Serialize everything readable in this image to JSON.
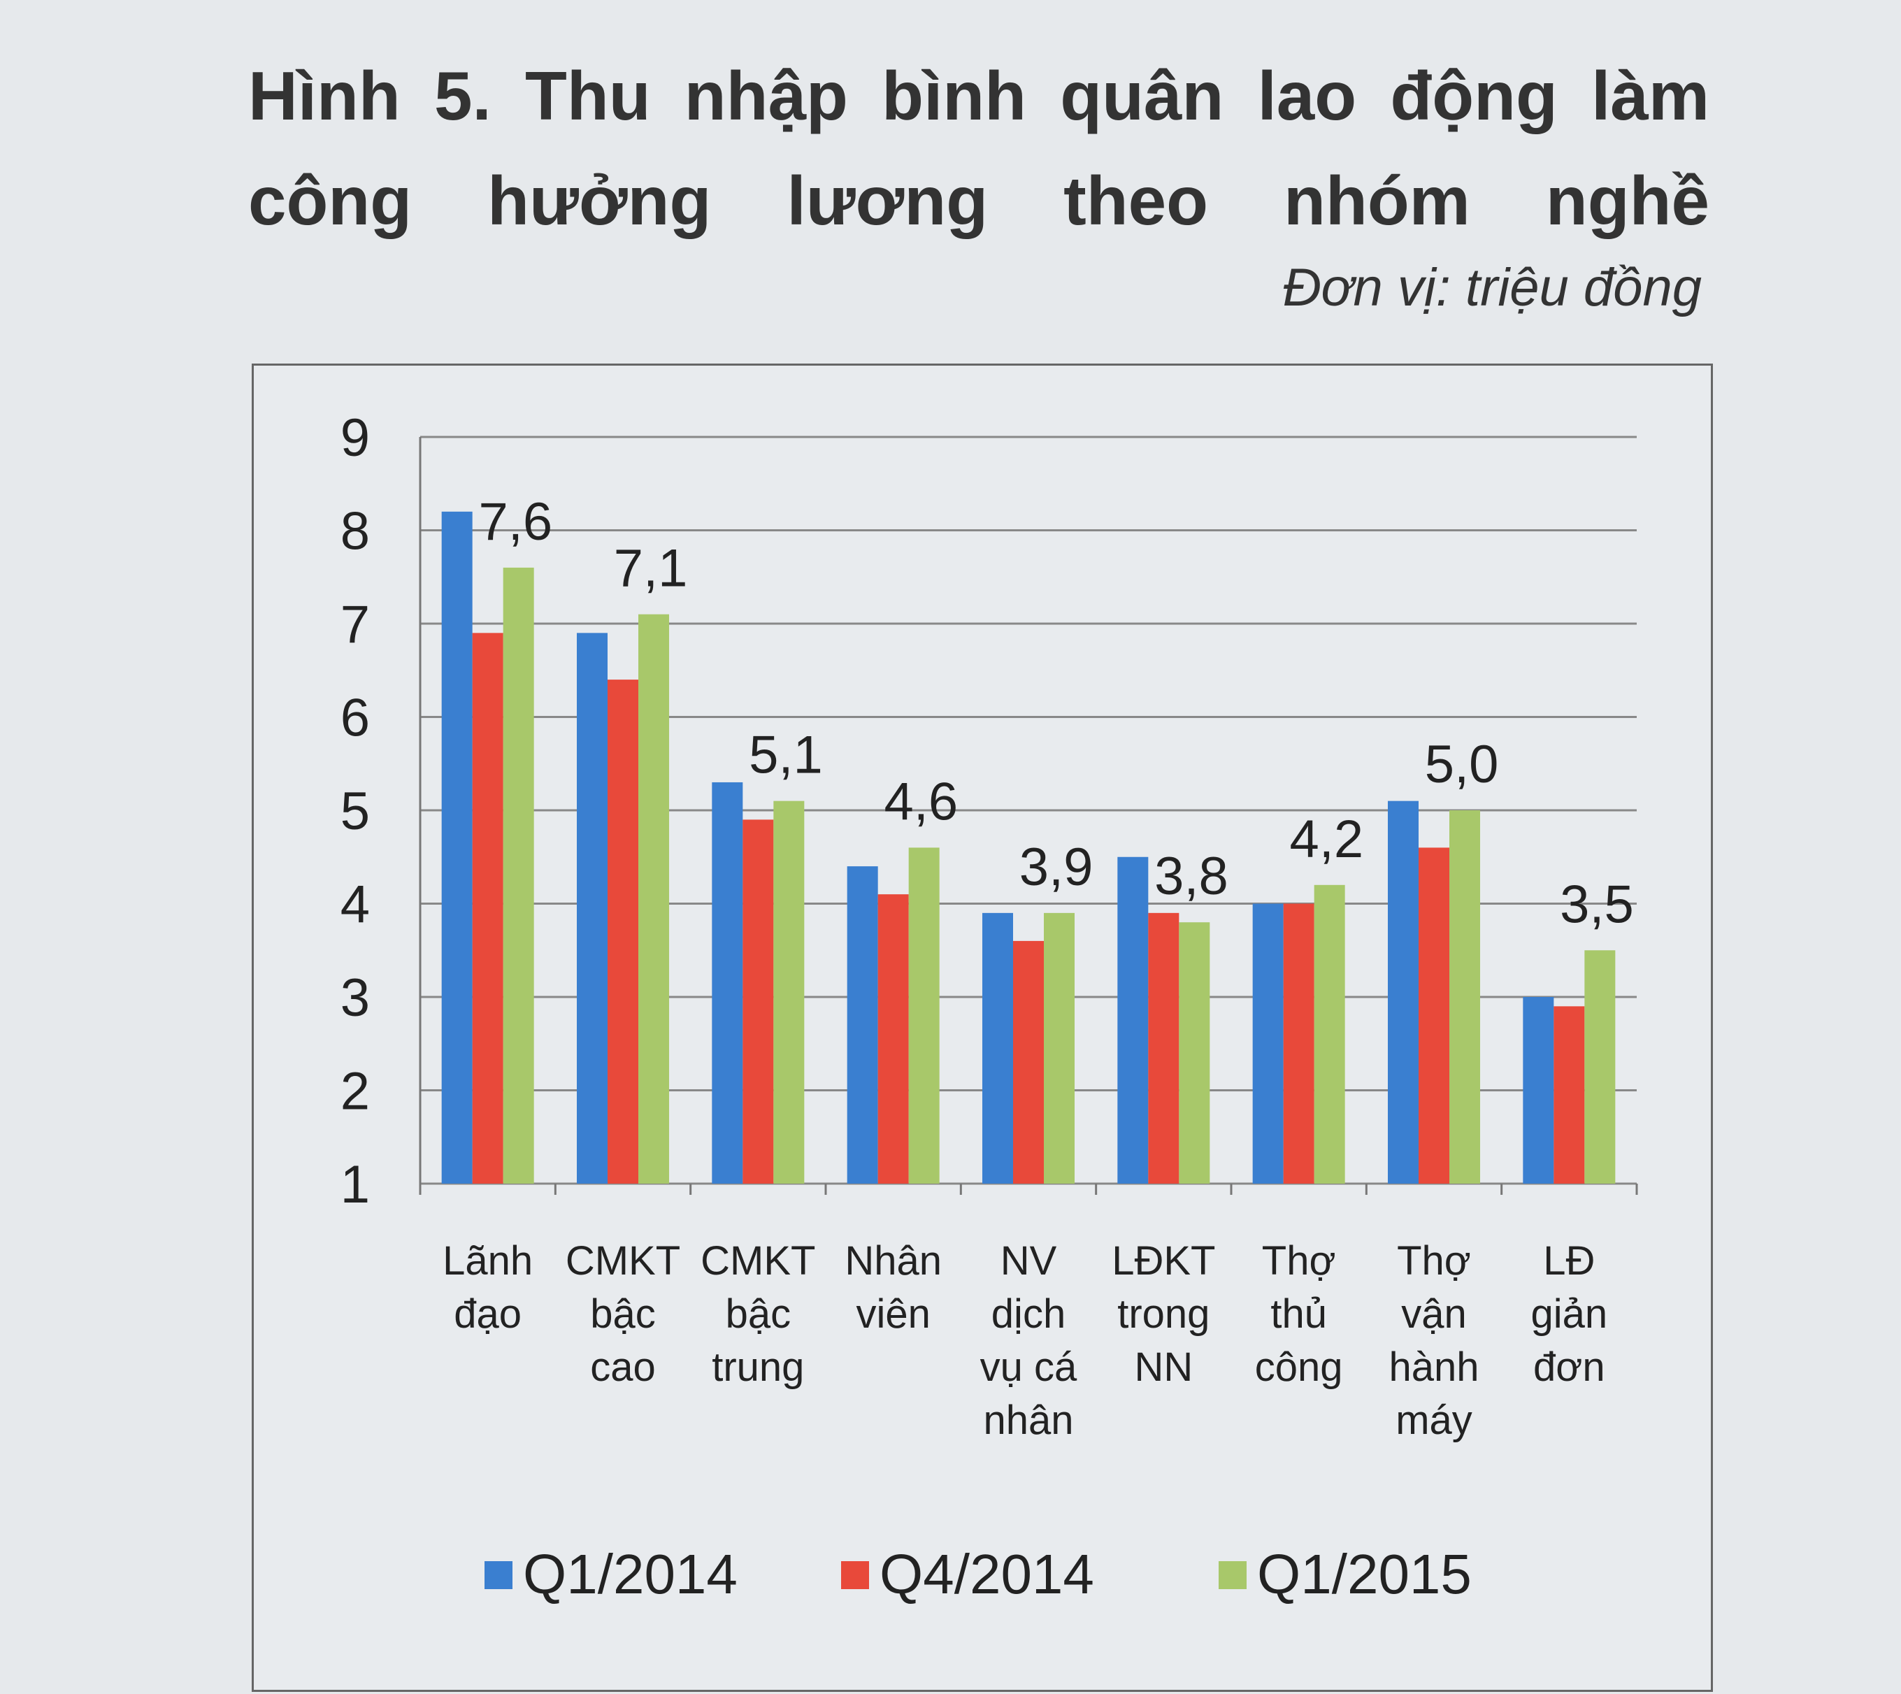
{
  "figure": {
    "title": "Hình 5. Thu nhập bình quân lao động làm công hưởng lương theo nhóm nghề",
    "unit": "Đơn vị: triệu đồng"
  },
  "colors": {
    "Q1/2014": "#3a7fd0",
    "Q4/2014": "#e8493a",
    "Q1/2015": "#a8c86a"
  },
  "chart_data": {
    "type": "bar",
    "title": "Hình 5. Thu nhập bình quân lao động làm công hưởng lương theo nhóm nghề",
    "unit": "Đơn vị: triệu đồng",
    "xlabel": "",
    "ylabel": "",
    "ylim": [
      1,
      9
    ],
    "yticks": [
      1,
      2,
      3,
      4,
      5,
      6,
      7,
      8,
      9
    ],
    "grid": true,
    "legend": "bottom",
    "categories": [
      [
        "Lãnh",
        "đạo"
      ],
      [
        "CMKT",
        "bậc",
        "cao"
      ],
      [
        "CMKT",
        "bậc",
        "trung"
      ],
      [
        "Nhân",
        "viên"
      ],
      [
        "NV",
        "dịch",
        "vụ cá",
        "nhân"
      ],
      [
        "LĐKT",
        "trong",
        "NN"
      ],
      [
        "Thợ",
        "thủ",
        "công"
      ],
      [
        "Thợ",
        "vận",
        "hành",
        "máy"
      ],
      [
        "LĐ",
        "giản",
        "đơn"
      ]
    ],
    "series": [
      {
        "name": "Q1/2014",
        "values": [
          8.2,
          6.9,
          5.3,
          4.4,
          3.9,
          4.5,
          4.0,
          5.1,
          3.0
        ]
      },
      {
        "name": "Q4/2014",
        "values": [
          6.9,
          6.4,
          4.9,
          4.1,
          3.6,
          3.9,
          4.0,
          4.6,
          2.9
        ]
      },
      {
        "name": "Q1/2015",
        "values": [
          7.6,
          7.1,
          5.1,
          4.6,
          3.9,
          3.8,
          4.2,
          5.0,
          3.5
        ]
      }
    ],
    "data_labels": [
      "7,6",
      "7,1",
      "5,1",
      "4,6",
      "3,9",
      "3,8",
      "4,2",
      "5,0",
      "3,5"
    ]
  }
}
